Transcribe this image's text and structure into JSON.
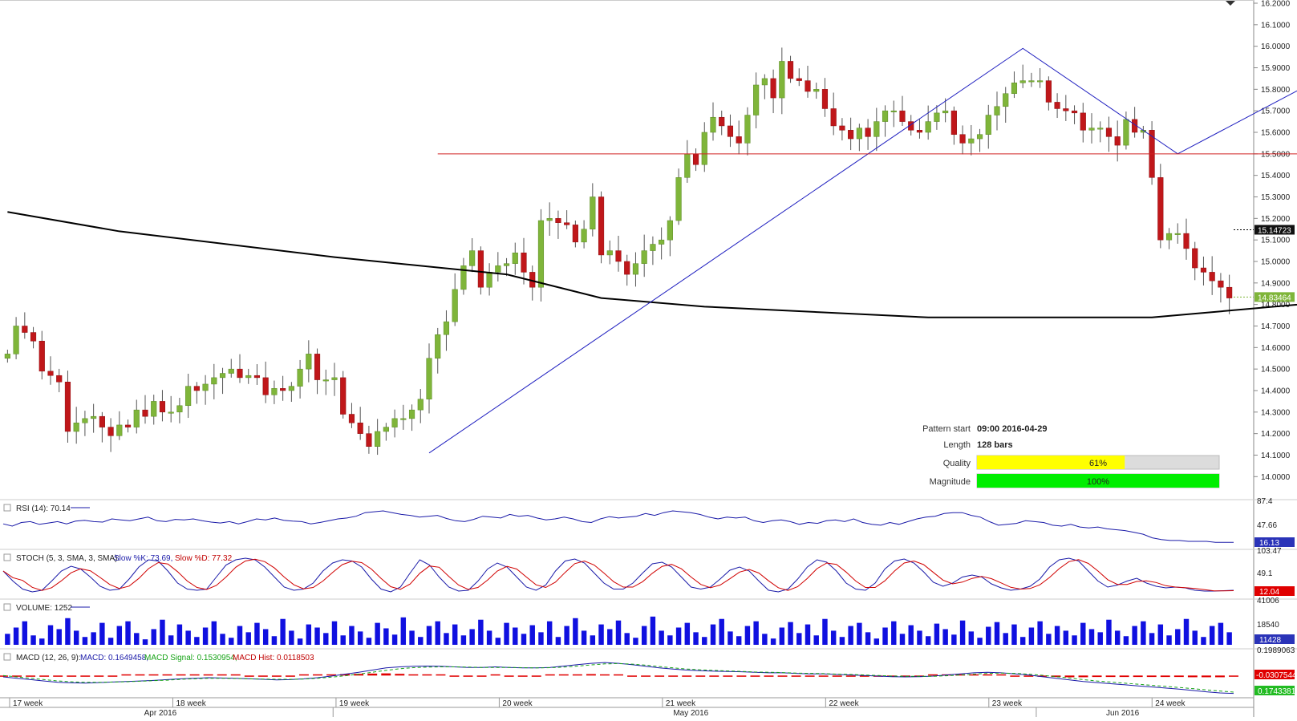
{
  "chart_data": {
    "type": "candlestick",
    "price_axis": {
      "ylim": [
        13.99,
        16.2
      ],
      "ticks": [
        "16.2000",
        "16.1000",
        "16.0000",
        "15.9000",
        "15.8000",
        "15.7000",
        "15.6000",
        "15.5000",
        "15.4000",
        "15.3000",
        "15.2000",
        "15.1000",
        "15.0000",
        "14.9000",
        "14.8000",
        "14.7000",
        "14.6000",
        "14.5000",
        "14.4000",
        "14.3000",
        "14.2000",
        "14.1000",
        "14.0000"
      ],
      "tick_values": [
        16.2,
        16.1,
        16.0,
        15.9,
        15.8,
        15.7,
        15.6,
        15.5,
        15.4,
        15.3,
        15.2,
        15.1,
        15.0,
        14.9,
        14.8,
        14.7,
        14.6,
        14.5,
        14.4,
        14.3,
        14.2,
        14.1,
        14.0
      ],
      "bubble_ma": "15.14723",
      "bubble_ma_value": 15.14723,
      "bubble_last": "14.83464",
      "bubble_last_value": 14.83464
    },
    "close": [
      14.57,
      14.7,
      14.67,
      14.63,
      14.49,
      14.47,
      14.44,
      14.21,
      14.25,
      14.27,
      14.28,
      14.23,
      14.19,
      14.24,
      14.23,
      14.31,
      14.28,
      14.35,
      14.3,
      14.3,
      14.33,
      14.42,
      14.4,
      14.43,
      14.46,
      14.48,
      14.5,
      14.46,
      14.47,
      14.46,
      14.38,
      14.41,
      14.4,
      14.42,
      14.5,
      14.57,
      14.45,
      14.45,
      14.46,
      14.29,
      14.25,
      14.2,
      14.14,
      14.21,
      14.23,
      14.27,
      14.27,
      14.31,
      14.36,
      14.55,
      14.66,
      14.72,
      14.87,
      14.98,
      15.05,
      14.88,
      14.95,
      14.98,
      14.99,
      15.04,
      14.95,
      14.88,
      15.19,
      15.2,
      15.18,
      15.17,
      15.09,
      15.15,
      15.3,
      15.03,
      15.05,
      15.0,
      14.94,
      14.99,
      15.05,
      15.08,
      15.1,
      15.19,
      15.39,
      15.5,
      15.45,
      15.6,
      15.67,
      15.63,
      15.58,
      15.55,
      15.68,
      15.82,
      15.85,
      15.76,
      15.93,
      15.85,
      15.84,
      15.79,
      15.8,
      15.71,
      15.63,
      15.61,
      15.57,
      15.62,
      15.58,
      15.65,
      15.7,
      15.7,
      15.65,
      15.61,
      15.6,
      15.65,
      15.69,
      15.7,
      15.59,
      15.55,
      15.57,
      15.59,
      15.68,
      15.72,
      15.78,
      15.83,
      15.84,
      15.84,
      15.84,
      15.74,
      15.71,
      15.7,
      15.69,
      15.61,
      15.62,
      15.62,
      15.58,
      15.54,
      15.66,
      15.6,
      15.61,
      15.39,
      15.1,
      15.13,
      15.13,
      15.06,
      14.97,
      14.95,
      14.91,
      14.88,
      14.83
    ],
    "ma_line": [
      {
        "x": 0,
        "y": 15.23
      },
      {
        "x": 13,
        "y": 15.14
      },
      {
        "x": 38,
        "y": 15.02
      },
      {
        "x": 58,
        "y": 14.94
      },
      {
        "x": 69,
        "y": 14.83
      },
      {
        "x": 81,
        "y": 14.79
      },
      {
        "x": 107,
        "y": 14.74
      },
      {
        "x": 133,
        "y": 14.74
      },
      {
        "x": 170,
        "y": 14.87
      },
      {
        "x": 210,
        "y": 14.9
      },
      {
        "x": 233,
        "y": 15.0
      },
      {
        "x": 250,
        "y": 15.1
      },
      {
        "x": 256,
        "y": 15.14
      }
    ],
    "pattern_lines": [
      {
        "points": [
          {
            "x": 49,
            "y": 14.11
          },
          {
            "x": 118,
            "y": 15.99
          },
          {
            "x": 136,
            "y": 15.5
          },
          {
            "x": 154,
            "y": 15.88
          }
        ]
      },
      {
        "points": [
          {
            "x": 50,
            "y": 15.5
          },
          {
            "x": 154,
            "y": 15.5
          }
        ]
      }
    ],
    "time_axis": {
      "week_labels": [
        "17 week",
        "18 week",
        "19 week",
        "20 week",
        "21 week",
        "22 week",
        "23 week",
        "24 week"
      ],
      "month_labels": [
        "Apr 2016",
        "May 2016",
        "Jun 2016"
      ]
    },
    "info": {
      "pattern_start_label": "Pattern start",
      "pattern_start": "09:00 2016-04-29",
      "length_label": "Length",
      "length": "128 bars",
      "quality_label": "Quality",
      "quality_text": "61%",
      "quality": 0.61,
      "magnitude_label": "Magnitude",
      "magnitude_text": "100%",
      "magnitude": 1.0
    },
    "indicators": {
      "rsi": {
        "label": "RSI (14): 70.14",
        "ticks": [
          "87.4",
          "47.66"
        ],
        "bubble": "16.13",
        "values": [
          55,
          50,
          58,
          60,
          54,
          57,
          60,
          55,
          61,
          63,
          60,
          59,
          66,
          64,
          62,
          66,
          70,
          62,
          60,
          65,
          64,
          66,
          62,
          59,
          57,
          60,
          55,
          60,
          66,
          64,
          68,
          63,
          61,
          60,
          55,
          58,
          62,
          66,
          68,
          72,
          80,
          82,
          84,
          80,
          76,
          74,
          70,
          72,
          74,
          67,
          62,
          60,
          65,
          72,
          70,
          68,
          76,
          72,
          74,
          68,
          64,
          66,
          70,
          66,
          60,
          58,
          66,
          71,
          68,
          70,
          72,
          78,
          74,
          80,
          84,
          82,
          80,
          76,
          70,
          66,
          70,
          68,
          70,
          62,
          58,
          62,
          64,
          60,
          54,
          58,
          56,
          62,
          64,
          60,
          66,
          58,
          54,
          52,
          58,
          54,
          60,
          66,
          70,
          72,
          78,
          80,
          80,
          74,
          70,
          60,
          52,
          54,
          56,
          62,
          60,
          58,
          52,
          50,
          54,
          48,
          46,
          48,
          44,
          42,
          40,
          36,
          32,
          24,
          20,
          18,
          18,
          16,
          16,
          16,
          14,
          14,
          14
        ]
      },
      "stoch": {
        "label": "STOCH (5, 3, SMA, 3, SMA):",
        "slowk_label": "Slow %K: 73.69,",
        "slowd_label": "Slow %D: 77.32",
        "ticks": [
          "103.47",
          "49.1"
        ],
        "bubble": "12.04",
        "slow_k": [
          60,
          35,
          15,
          8,
          12,
          35,
          60,
          72,
          65,
          45,
          22,
          12,
          15,
          40,
          70,
          88,
          85,
          60,
          30,
          15,
          12,
          15,
          45,
          75,
          88,
          92,
          88,
          70,
          45,
          20,
          12,
          15,
          30,
          60,
          80,
          88,
          85,
          70,
          40,
          15,
          8,
          20,
          55,
          88,
          75,
          45,
          20,
          10,
          12,
          35,
          65,
          80,
          70,
          45,
          20,
          12,
          25,
          60,
          85,
          90,
          80,
          55,
          30,
          15,
          15,
          30,
          55,
          78,
          82,
          70,
          45,
          20,
          15,
          20,
          40,
          62,
          70,
          60,
          35,
          12,
          8,
          15,
          40,
          70,
          88,
          82,
          60,
          30,
          15,
          12,
          30,
          65,
          85,
          90,
          80,
          58,
          32,
          22,
          30,
          45,
          50,
          45,
          28,
          18,
          12,
          15,
          22,
          40,
          70,
          88,
          92,
          85,
          60,
          35,
          20,
          25,
          35,
          42,
          30,
          22,
          18,
          20,
          18,
          12,
          10,
          10,
          11,
          12
        ]
      },
      "volume": {
        "label": "VOLUME: 1252",
        "ticks": [
          "41006",
          "18540"
        ],
        "bubble": "11428",
        "values": [
          14000,
          22000,
          30000,
          12000,
          8000,
          25000,
          20000,
          34000,
          18000,
          10000,
          16000,
          28000,
          9000,
          24000,
          30000,
          15000,
          7000,
          20000,
          32000,
          12000,
          26000,
          18000,
          10000,
          22000,
          30000,
          14000,
          9000,
          24000,
          16000,
          28000,
          20000,
          11000,
          33000,
          18000,
          8000,
          26000,
          22000,
          15000,
          30000,
          12000,
          24000,
          17000,
          9000,
          28000,
          21000,
          13000,
          35000,
          18000,
          10000,
          24000,
          30000,
          15000,
          26000,
          12000,
          20000,
          32000,
          18000,
          9000,
          28000,
          22000,
          14000,
          25000,
          16000,
          30000,
          10000,
          24000,
          34000,
          18000,
          12000,
          26000,
          20000,
          31000,
          15000,
          9000,
          24000,
          36000,
          18000,
          12000,
          22000,
          28000,
          16000,
          10000,
          26000,
          33000,
          17000,
          11000,
          24000,
          30000,
          14000,
          8000,
          22000,
          29000,
          15000,
          26000,
          12000,
          33000,
          18000,
          10000,
          24000,
          28000,
          16000,
          8000,
          22000,
          30000,
          14000,
          25000,
          18000,
          11000,
          27000,
          20000,
          13000,
          31000,
          17000,
          9000,
          23000,
          29000,
          15000,
          26000,
          10000,
          22000,
          30000,
          14000,
          24000,
          18000,
          12000,
          28000,
          20000,
          16000,
          32000,
          18000,
          11000,
          24000,
          30000,
          15000,
          26000,
          12000,
          20000,
          33000,
          18000,
          10000,
          24000,
          28000,
          16000
        ]
      },
      "macd": {
        "label": "MACD (12, 26, 9):",
        "macd_label": "MACD: 0.1649458,",
        "signal_label": "MACD Signal: 0.1530954,",
        "hist_label": "MACD Hist: 0.0118503",
        "ticks": [
          "0.1989063",
          "-0.0307544"
        ],
        "bubble_macd": "-0.0307544",
        "bubble_signal": "0.1743381",
        "macd": [
          -0.05,
          -0.1,
          -0.15,
          -0.2,
          -0.25,
          -0.27,
          -0.28,
          -0.26,
          -0.24,
          -0.22,
          -0.2,
          -0.18,
          -0.15,
          -0.12,
          -0.1,
          -0.08,
          -0.09,
          -0.1,
          -0.12,
          -0.14,
          -0.16,
          -0.15,
          -0.12,
          -0.08,
          -0.02,
          0.05,
          0.12,
          0.2,
          0.28,
          0.32,
          0.34,
          0.35,
          0.34,
          0.32,
          0.3,
          0.3,
          0.32,
          0.3,
          0.28,
          0.28,
          0.3,
          0.35,
          0.4,
          0.45,
          0.48,
          0.45,
          0.4,
          0.34,
          0.28,
          0.24,
          0.2,
          0.18,
          0.16,
          0.15,
          0.14,
          0.12,
          0.1,
          0.1,
          0.08,
          0.06,
          0.06,
          0.04,
          0.02,
          0.0,
          -0.02,
          -0.04,
          -0.05,
          -0.04,
          -0.02,
          0.02,
          0.06,
          0.1,
          0.12,
          0.1,
          0.06,
          0.02,
          -0.04,
          -0.1,
          -0.16,
          -0.22,
          -0.26,
          -0.3,
          -0.34,
          -0.38,
          -0.42,
          -0.46,
          -0.5,
          -0.55,
          -0.6,
          -0.64,
          -0.66
        ],
        "signal": [
          0.0,
          -0.05,
          -0.1,
          -0.15,
          -0.2,
          -0.23,
          -0.25,
          -0.25,
          -0.24,
          -0.23,
          -0.21,
          -0.19,
          -0.17,
          -0.14,
          -0.12,
          -0.1,
          -0.1,
          -0.11,
          -0.12,
          -0.13,
          -0.14,
          -0.14,
          -0.13,
          -0.1,
          -0.06,
          -0.01,
          0.05,
          0.12,
          0.19,
          0.25,
          0.29,
          0.31,
          0.32,
          0.32,
          0.31,
          0.3,
          0.3,
          0.3,
          0.29,
          0.28,
          0.29,
          0.31,
          0.35,
          0.39,
          0.43,
          0.44,
          0.42,
          0.38,
          0.33,
          0.28,
          0.24,
          0.21,
          0.19,
          0.17,
          0.15,
          0.13,
          0.12,
          0.11,
          0.09,
          0.08,
          0.07,
          0.05,
          0.04,
          0.02,
          0.0,
          -0.02,
          -0.03,
          -0.03,
          -0.03,
          -0.01,
          0.02,
          0.05,
          0.08,
          0.09,
          0.08,
          0.05,
          0.01,
          -0.04,
          -0.09,
          -0.15,
          -0.2,
          -0.24,
          -0.28,
          -0.32,
          -0.36,
          -0.4,
          -0.44,
          -0.48,
          -0.53,
          -0.57,
          -0.61
        ]
      }
    }
  }
}
